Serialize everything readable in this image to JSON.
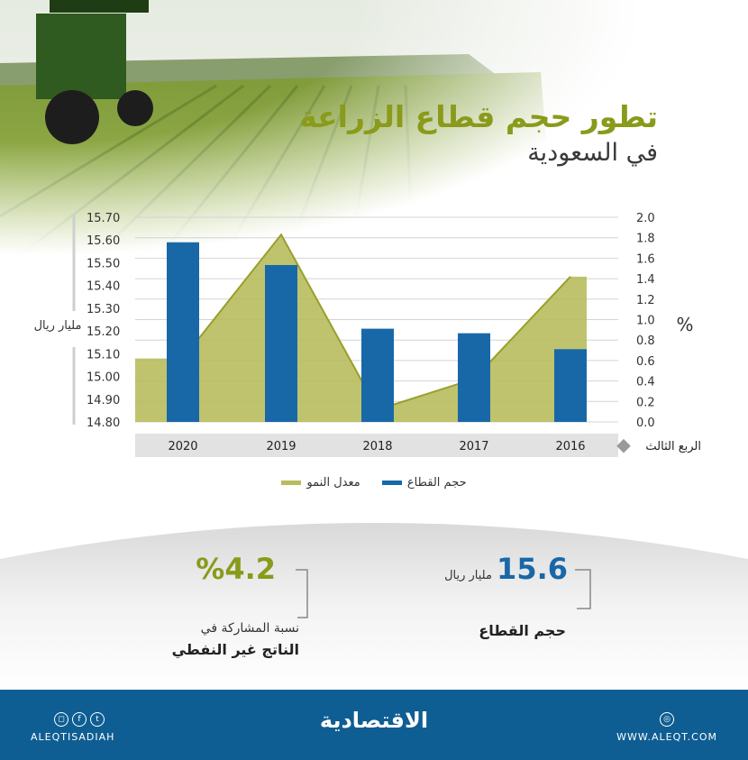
{
  "title": {
    "line1": "تطور حجم قطاع الزراعة",
    "line2": "في السعودية"
  },
  "chart_data": {
    "type": "bar",
    "categories": [
      "2020",
      "2019",
      "2018",
      "2017",
      "2016"
    ],
    "x_axis_label": "الربع الثالث",
    "left_axis": {
      "label": "مليار ريال",
      "ticks": [
        "15.70",
        "15.60",
        "15.50",
        "15.40",
        "15.30",
        "15.20",
        "15.10",
        "15.00",
        "14.90",
        "14.80"
      ],
      "ylim": [
        14.8,
        15.7
      ]
    },
    "right_axis": {
      "label": "%",
      "ticks": [
        "2.0",
        "1.8",
        "1.6",
        "1.4",
        "1.2",
        "1.0",
        "0.8",
        "0.6",
        "0.4",
        "0.2",
        "0.0"
      ],
      "ylim": [
        0,
        2.0
      ]
    },
    "series": [
      {
        "name": "حجم القطاع",
        "type": "bar",
        "axis": "left",
        "color": "#1868a8",
        "values": [
          15.59,
          15.49,
          15.21,
          15.19,
          15.12
        ]
      },
      {
        "name": "معدل النمو",
        "type": "area",
        "axis": "right",
        "color": "#b8bc5e",
        "values": [
          0.62,
          1.83,
          0.12,
          0.42,
          1.42
        ]
      }
    ],
    "grid": true,
    "legend": "bottom-center"
  },
  "stats": {
    "size": {
      "value": "15.6",
      "unit": "مليار ريال",
      "label": "حجم القطاع"
    },
    "share": {
      "value": "%4.2",
      "label1": "نسبة المشاركة في",
      "label2": "الناتج غير النفطي"
    }
  },
  "footer": {
    "brand": "الاقتصادية",
    "site": "WWW.ALEQT.COM",
    "handle": "ALEQTISADIAH"
  },
  "colors": {
    "accent": "#8a9a1a",
    "bar": "#1868a8",
    "footer": "#0f5e93"
  }
}
